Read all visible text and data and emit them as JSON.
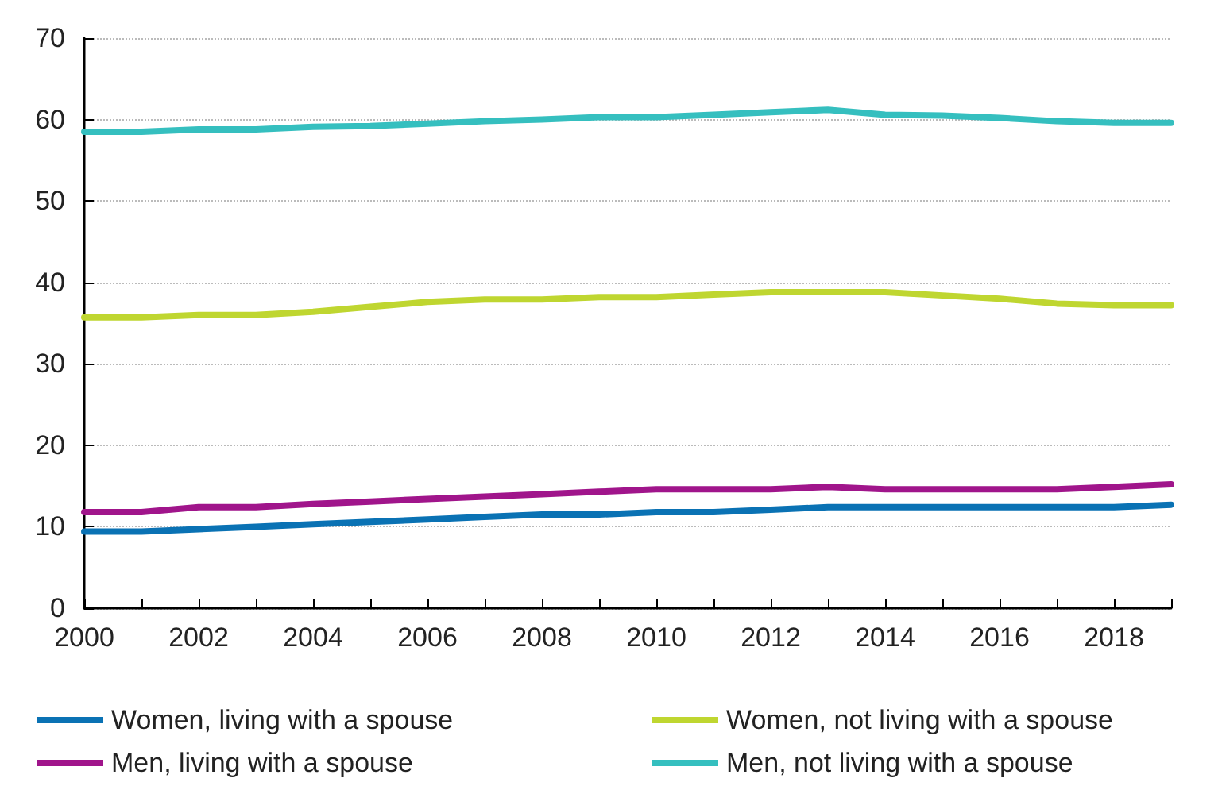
{
  "chart_data": {
    "type": "line",
    "x": [
      2000,
      2001,
      2002,
      2003,
      2004,
      2005,
      2006,
      2007,
      2008,
      2009,
      2010,
      2011,
      2012,
      2013,
      2014,
      2015,
      2016,
      2017,
      2018,
      2019
    ],
    "series": [
      {
        "name": "Women, living with a spouse",
        "color": "#0a72b4",
        "values": [
          9.4,
          9.4,
          9.7,
          10.0,
          10.3,
          10.6,
          10.9,
          11.2,
          11.5,
          11.5,
          11.8,
          11.8,
          12.1,
          12.4,
          12.4,
          12.4,
          12.4,
          12.4,
          12.4,
          12.7
        ]
      },
      {
        "name": "Women, not living with a spouse",
        "color": "#bfd630",
        "values": [
          35.7,
          35.7,
          36.0,
          36.0,
          36.4,
          37.0,
          37.6,
          37.9,
          37.9,
          38.2,
          38.2,
          38.5,
          38.8,
          38.8,
          38.8,
          38.4,
          38.0,
          37.4,
          37.2,
          37.2
        ]
      },
      {
        "name": "Men, living with a spouse",
        "color": "#a0158b",
        "values": [
          11.8,
          11.8,
          12.4,
          12.4,
          12.8,
          13.1,
          13.4,
          13.7,
          14.0,
          14.3,
          14.6,
          14.6,
          14.6,
          14.9,
          14.6,
          14.6,
          14.6,
          14.6,
          14.9,
          15.2
        ]
      },
      {
        "name": "Men, not living with a spouse",
        "color": "#35bfbf",
        "values": [
          58.5,
          58.5,
          58.8,
          58.8,
          59.1,
          59.2,
          59.5,
          59.8,
          60.0,
          60.3,
          60.3,
          60.6,
          60.9,
          61.2,
          60.6,
          60.5,
          60.2,
          59.8,
          59.6,
          59.6
        ]
      }
    ],
    "xlim": [
      2000,
      2019
    ],
    "xticks": [
      2000,
      {
        "value": 2001,
        "label": null
      },
      2002,
      {
        "value": 2003,
        "label": null
      },
      2004,
      {
        "value": 2005,
        "label": null
      },
      2006,
      {
        "value": 2007,
        "label": null
      },
      2008,
      {
        "value": 2009,
        "label": null
      },
      2010,
      {
        "value": 2011,
        "label": null
      },
      2012,
      {
        "value": 2013,
        "label": null
      },
      2014,
      {
        "value": 2015,
        "label": null
      },
      2016,
      {
        "value": 2017,
        "label": null
      },
      2018,
      {
        "value": 2019,
        "label": null
      }
    ],
    "ylim": [
      0,
      70
    ],
    "yticks": [
      0,
      10,
      20,
      30,
      40,
      50,
      60,
      70
    ],
    "grid": "y",
    "legend": "bottom",
    "marker": "none",
    "line_style": "solid"
  }
}
